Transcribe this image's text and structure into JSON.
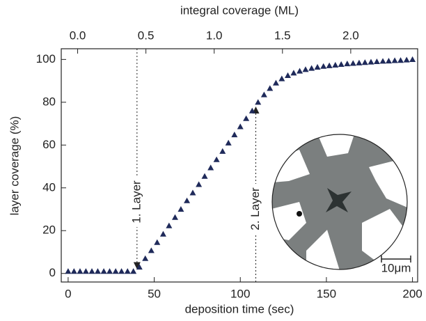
{
  "chart_data": {
    "type": "scatter",
    "xlabel": "deposition time (sec)",
    "ylabel": "layer coverage (%)",
    "x2label": "integral coverage (ML)",
    "xlim": [
      -4,
      203
    ],
    "xticks": [
      0,
      50,
      100,
      150,
      200
    ],
    "x2lim": [
      -0.12,
      2.49
    ],
    "x2ticks": [
      {
        "value": 0,
        "label": "0.0"
      },
      0.5,
      {
        "value": 1,
        "label": "1.0"
      },
      1.5,
      {
        "value": 2,
        "label": "2.0"
      }
    ],
    "ylim": [
      -4,
      105
    ],
    "yticks": [
      0,
      20,
      40,
      60,
      80,
      100
    ],
    "color": "#1f2a5a",
    "marker": "triangle",
    "x": [
      0,
      3.4,
      6.9,
      10.3,
      13.8,
      17.2,
      20.7,
      24.1,
      27.6,
      31,
      34.5,
      37.9,
      41.4,
      44.8,
      48.3,
      51.7,
      55.2,
      58.6,
      62.1,
      65.5,
      69,
      72.4,
      75.9,
      79.3,
      82.8,
      86.2,
      89.7,
      93.1,
      96.6,
      100,
      103.4,
      106.9,
      110.3,
      113.8,
      117.2,
      120.7,
      124.1,
      127.6,
      131,
      134.5,
      137.9,
      141.4,
      144.8,
      148.3,
      151.7,
      155.2,
      158.6,
      162.1,
      165.5,
      169,
      172.4,
      175.9,
      179.3,
      182.8,
      186.2,
      189.7,
      193.1,
      196.6,
      200
    ],
    "values": [
      1,
      1,
      1,
      1,
      1,
      1,
      1,
      1,
      1,
      1,
      1,
      1,
      3,
      7,
      10.7,
      14.5,
      18.4,
      22.3,
      26.2,
      30,
      34,
      37.7,
      41.6,
      45.4,
      49.4,
      53.2,
      57.1,
      61,
      64.8,
      68.6,
      72.4,
      76,
      80,
      83.5,
      86.5,
      89,
      91,
      92.5,
      93.7,
      94.6,
      95.3,
      95.9,
      96.4,
      96.8,
      97.1,
      97.4,
      97.7,
      98,
      98.2,
      98.4,
      98.6,
      98.8,
      99,
      99.2,
      99.3,
      99.5,
      99.6,
      99.8,
      100
    ],
    "annotations": [
      {
        "text": "1. Layer",
        "x": 40,
        "direction": "down"
      },
      {
        "text": "2. Layer",
        "x": 109,
        "direction": "up"
      }
    ],
    "inset": {
      "scale_label": "10μm"
    }
  }
}
